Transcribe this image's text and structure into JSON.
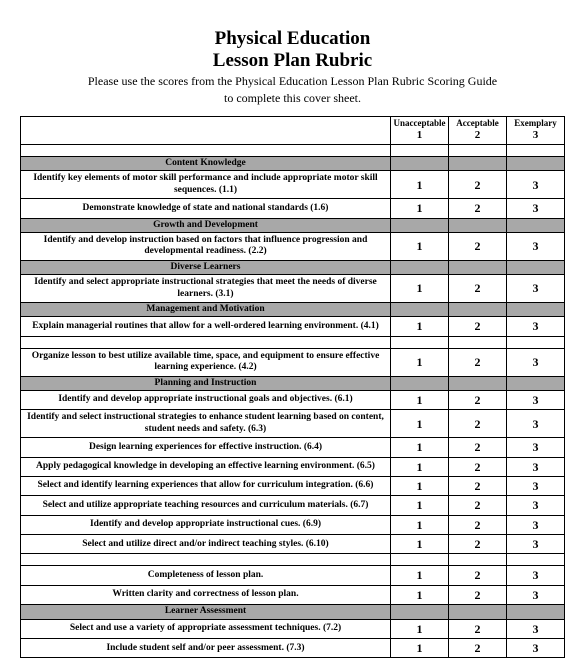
{
  "header": {
    "title1": "Physical Education",
    "title2": "Lesson Plan Rubric",
    "subtitle1": "Please use the scores from the Physical Education Lesson Plan Rubric Scoring Guide",
    "subtitle2": "to complete this cover sheet."
  },
  "columns": {
    "c1_label": "Unacceptable",
    "c1_num": "1",
    "c2_label": "Acceptable",
    "c2_num": "2",
    "c3_label": "Exemplary",
    "c3_num": "3"
  },
  "sections": [
    {
      "type": "blank"
    },
    {
      "type": "section",
      "label": "Content Knowledge"
    },
    {
      "type": "row",
      "desc": "Identify key elements of motor skill performance and include appropriate motor skill sequences.  (1.1)",
      "s1": "1",
      "s2": "2",
      "s3": "3"
    },
    {
      "type": "row",
      "desc": "Demonstrate knowledge of state and national standards (1.6)",
      "s1": "1",
      "s2": "2",
      "s3": "3"
    },
    {
      "type": "section",
      "label": "Growth and Development"
    },
    {
      "type": "row",
      "desc": "Identify and develop instruction based on factors that influence progression and developmental readiness. (2.2)",
      "s1": "1",
      "s2": "2",
      "s3": "3"
    },
    {
      "type": "section",
      "label": "Diverse Learners"
    },
    {
      "type": "row",
      "desc": "Identify and select appropriate instructional strategies that meet the needs of diverse learners. (3.1)",
      "s1": "1",
      "s2": "2",
      "s3": "3"
    },
    {
      "type": "section",
      "label": "Management and Motivation"
    },
    {
      "type": "row",
      "desc": "Explain managerial routines that allow for a well-ordered learning environment. (4.1)",
      "s1": "1",
      "s2": "2",
      "s3": "3"
    },
    {
      "type": "blank"
    },
    {
      "type": "row",
      "desc": "Organize lesson to best utilize available time, space, and equipment to ensure effective learning experience. (4.2)",
      "s1": "1",
      "s2": "2",
      "s3": "3"
    },
    {
      "type": "section",
      "label": "Planning and Instruction"
    },
    {
      "type": "row",
      "desc": "Identify and develop appropriate instructional goals and objectives. (6.1)",
      "s1": "1",
      "s2": "2",
      "s3": "3"
    },
    {
      "type": "row",
      "desc": "Identify and select instructional strategies to enhance student learning based on content, student needs and safety.  (6.3)",
      "s1": "1",
      "s2": "2",
      "s3": "3"
    },
    {
      "type": "row",
      "desc": "Design learning experiences for effective instruction. (6.4)",
      "s1": "1",
      "s2": "2",
      "s3": "3"
    },
    {
      "type": "row",
      "desc": "Apply pedagogical knowledge in developing an effective learning environment. (6.5)",
      "s1": "1",
      "s2": "2",
      "s3": "3"
    },
    {
      "type": "row",
      "desc": "Select and identify learning experiences that allow for curriculum integration.  (6.6)",
      "s1": "1",
      "s2": "2",
      "s3": "3"
    },
    {
      "type": "row",
      "desc": "Select and utilize appropriate teaching resources and curriculum materials. (6.7)",
      "s1": "1",
      "s2": "2",
      "s3": "3"
    },
    {
      "type": "row",
      "desc": "Identify and develop appropriate instructional cues.  (6.9)",
      "s1": "1",
      "s2": "2",
      "s3": "3"
    },
    {
      "type": "row",
      "desc": "Select and utilize direct and/or indirect teaching styles.  (6.10)",
      "s1": "1",
      "s2": "2",
      "s3": "3"
    },
    {
      "type": "blank"
    },
    {
      "type": "row",
      "desc": "Completeness of lesson plan.",
      "s1": "1",
      "s2": "2",
      "s3": "3"
    },
    {
      "type": "row",
      "desc": "Written clarity and correctness of lesson plan.",
      "s1": "1",
      "s2": "2",
      "s3": "3"
    },
    {
      "type": "section",
      "label": "Learner Assessment"
    },
    {
      "type": "row",
      "desc": "Select and use a variety of appropriate assessment techniques. (7.2)",
      "s1": "1",
      "s2": "2",
      "s3": "3"
    },
    {
      "type": "row",
      "desc": "Include student self and/or peer assessment. (7.3)",
      "s1": "1",
      "s2": "2",
      "s3": "3"
    }
  ]
}
